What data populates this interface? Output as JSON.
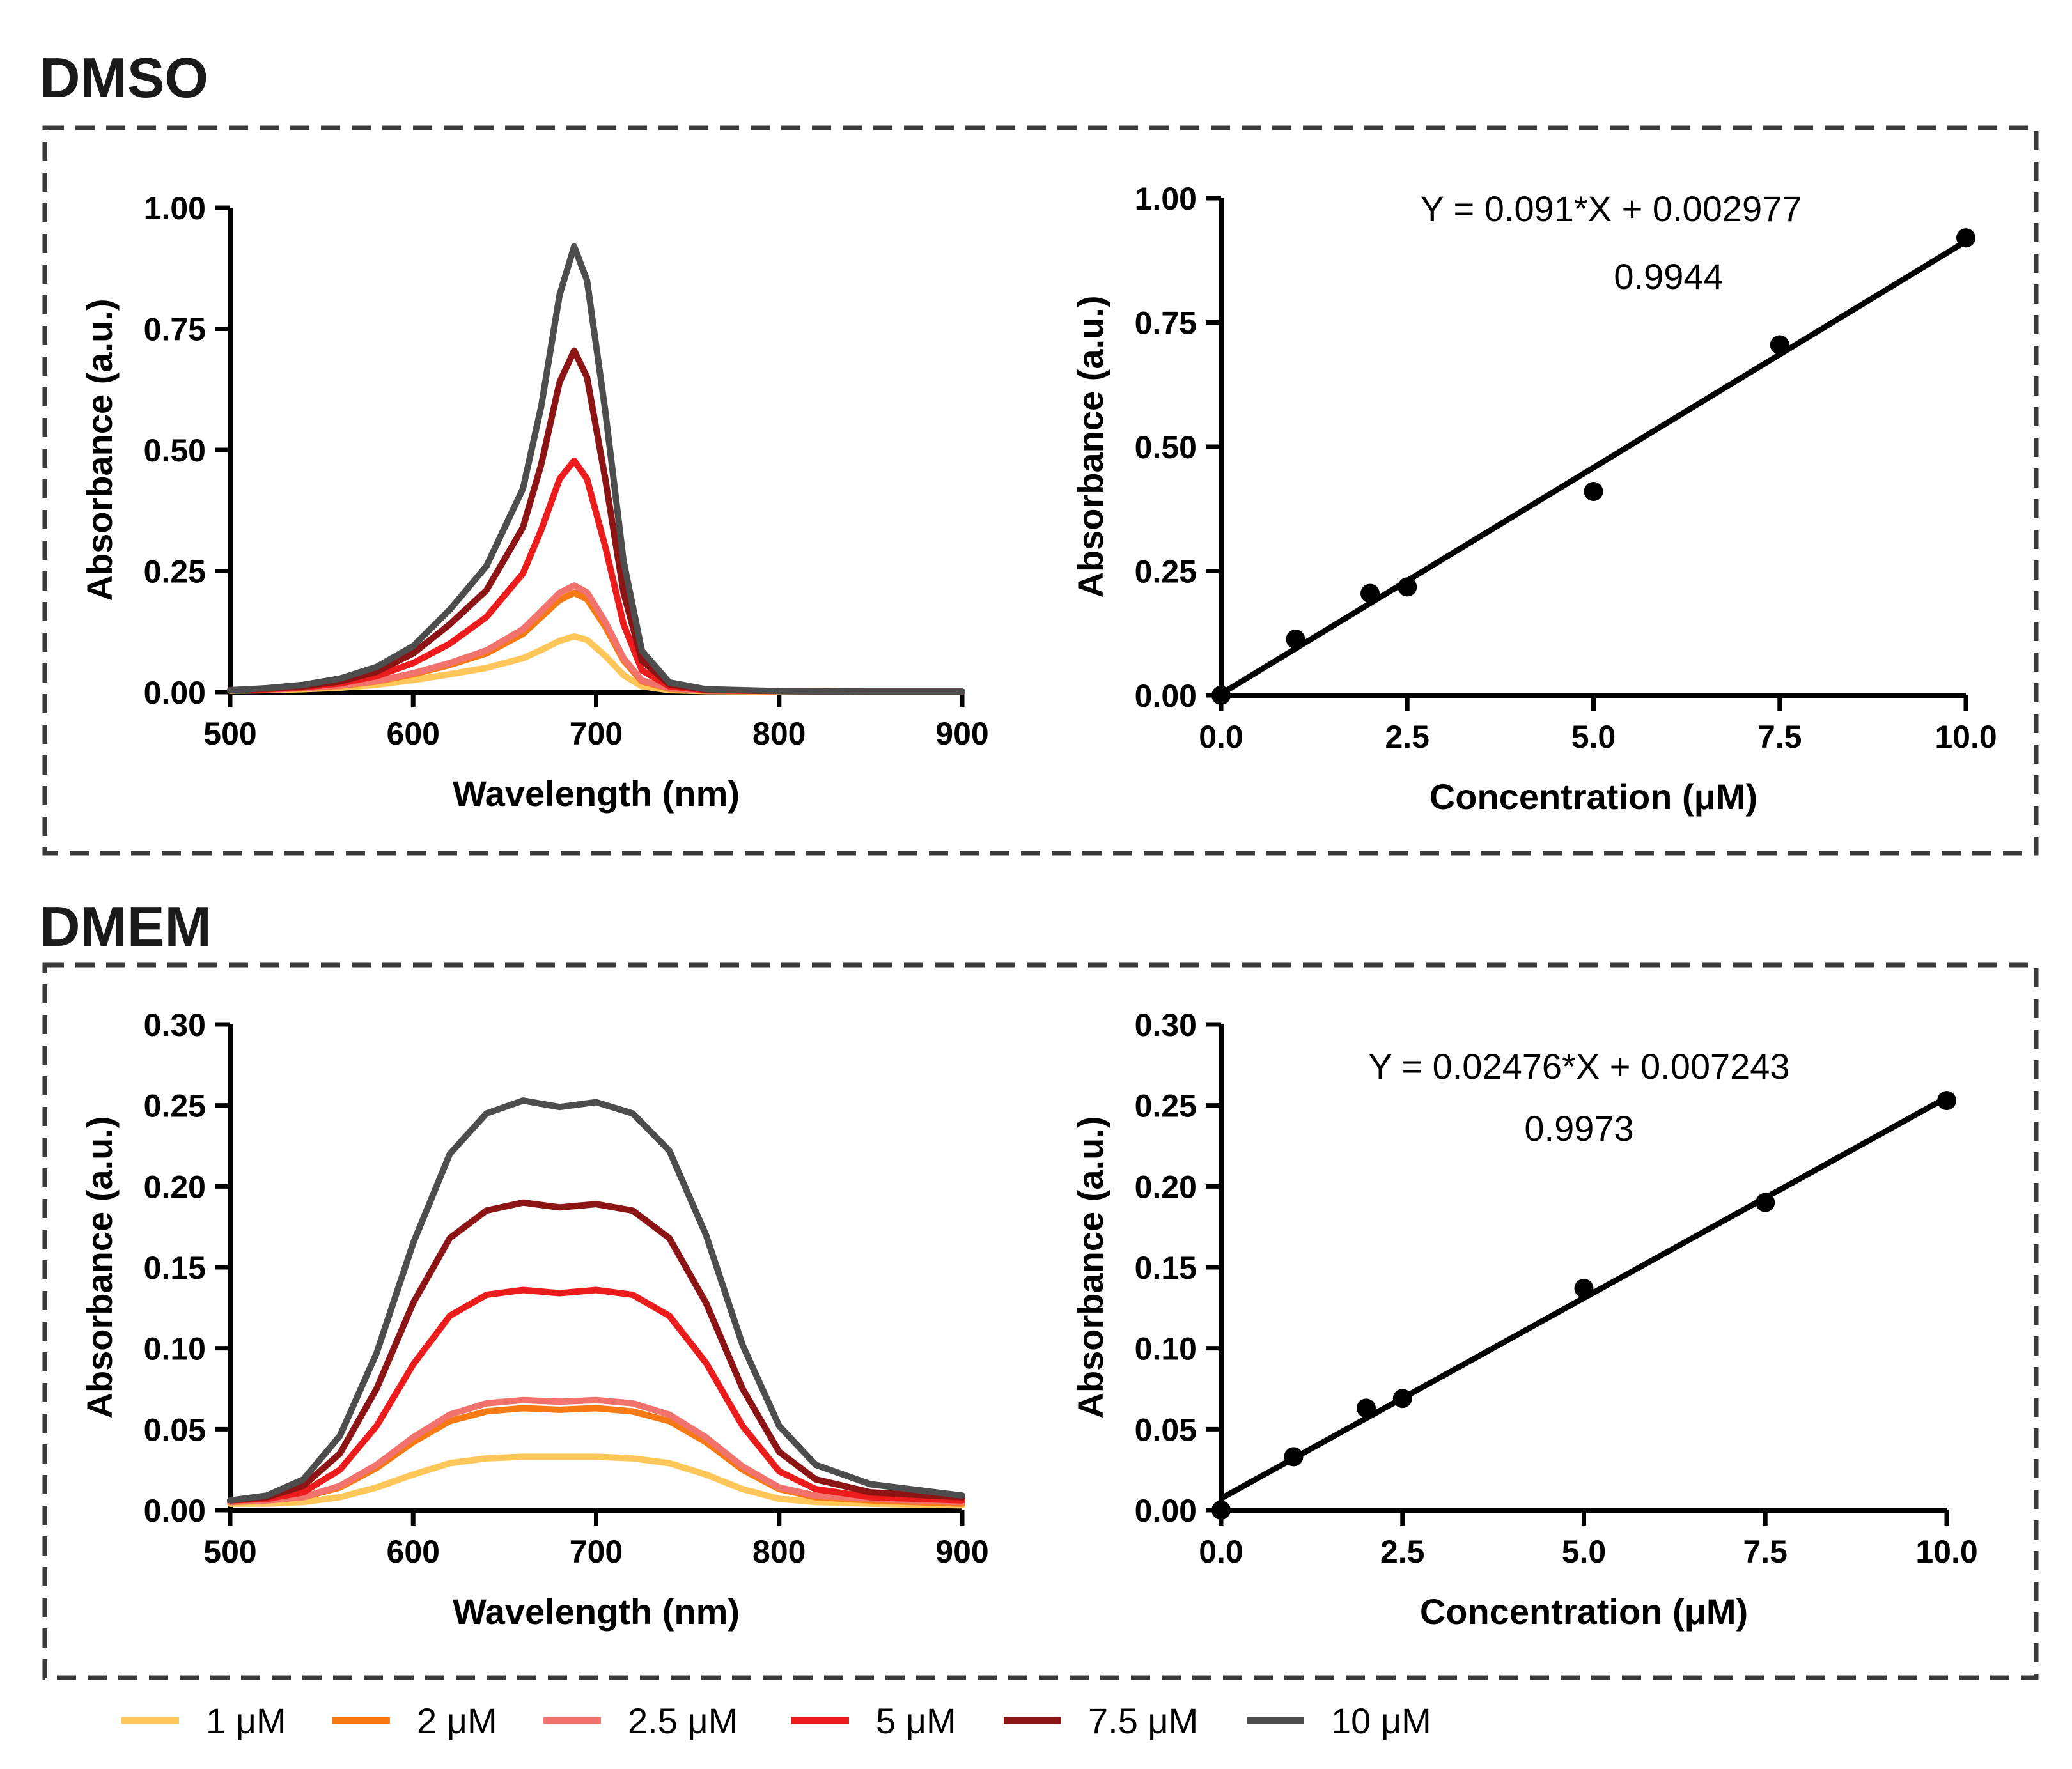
{
  "figure": {
    "legend": [
      {
        "label": "1 μM",
        "color": "#FFC65A"
      },
      {
        "label": "2 μM",
        "color": "#F57A13"
      },
      {
        "label": "2.5 μM",
        "color": "#F2726E"
      },
      {
        "label": "5 μM",
        "color": "#EC1C1C"
      },
      {
        "label": "7.5 μM",
        "color": "#8C1414"
      },
      {
        "label": "10 μM",
        "color": "#4D4D4D"
      }
    ]
  },
  "sections": [
    {
      "title": "DMSO"
    },
    {
      "title": "DMEM"
    }
  ],
  "chart_data": [
    {
      "id": "dmso-spectra",
      "type": "line",
      "section": "DMSO",
      "xlabel": "Wavelength (nm)",
      "ylabel": "Absorbance (a.u.)",
      "xlim": [
        500,
        900
      ],
      "ylim": [
        0,
        1.0
      ],
      "xticks": [
        500,
        600,
        700,
        800,
        900
      ],
      "xtick_labels": [
        "500",
        "600",
        "700",
        "800",
        "900"
      ],
      "yticks": [
        0,
        0.25,
        0.5,
        0.75,
        1.0
      ],
      "ytick_labels": [
        "0.00",
        "0.25",
        "0.50",
        "0.75",
        "1.00"
      ],
      "x": [
        500,
        520,
        540,
        560,
        580,
        600,
        620,
        640,
        660,
        670,
        680,
        688,
        695,
        705,
        715,
        725,
        740,
        760,
        800,
        850,
        900
      ],
      "series": [
        {
          "name": "1 μM",
          "color": "#FFC65A",
          "values": [
            0.003,
            0.004,
            0.006,
            0.009,
            0.015,
            0.025,
            0.037,
            0.05,
            0.07,
            0.087,
            0.106,
            0.115,
            0.108,
            0.075,
            0.035,
            0.012,
            0.004,
            0.002,
            0.001,
            0.001,
            0.001
          ]
        },
        {
          "name": "2 μM",
          "color": "#F57A13",
          "values": [
            0.004,
            0.005,
            0.008,
            0.013,
            0.022,
            0.037,
            0.056,
            0.08,
            0.12,
            0.155,
            0.19,
            0.205,
            0.192,
            0.135,
            0.065,
            0.022,
            0.007,
            0.003,
            0.002,
            0.001,
            0.001
          ]
        },
        {
          "name": "2.5 μM",
          "color": "#F2726E",
          "values": [
            0.004,
            0.005,
            0.008,
            0.014,
            0.023,
            0.039,
            0.06,
            0.086,
            0.13,
            0.167,
            0.205,
            0.22,
            0.206,
            0.145,
            0.07,
            0.024,
            0.008,
            0.003,
            0.002,
            0.001,
            0.001
          ]
        },
        {
          "name": "5 μM",
          "color": "#EC1C1C",
          "values": [
            0.004,
            0.006,
            0.01,
            0.018,
            0.033,
            0.06,
            0.1,
            0.155,
            0.245,
            0.335,
            0.44,
            0.478,
            0.44,
            0.3,
            0.14,
            0.045,
            0.012,
            0.004,
            0.002,
            0.001,
            0.001
          ]
        },
        {
          "name": "7.5 μM",
          "color": "#8C1414",
          "values": [
            0.004,
            0.007,
            0.012,
            0.022,
            0.042,
            0.08,
            0.14,
            0.21,
            0.34,
            0.47,
            0.64,
            0.705,
            0.65,
            0.44,
            0.205,
            0.065,
            0.016,
            0.005,
            0.002,
            0.001,
            0.001
          ]
        },
        {
          "name": "10 μM",
          "color": "#4D4D4D",
          "values": [
            0.004,
            0.008,
            0.015,
            0.028,
            0.052,
            0.095,
            0.17,
            0.26,
            0.42,
            0.59,
            0.82,
            0.92,
            0.85,
            0.58,
            0.27,
            0.085,
            0.02,
            0.006,
            0.002,
            0.001,
            0.001
          ]
        }
      ]
    },
    {
      "id": "dmso-calibration",
      "type": "scatter",
      "section": "DMSO",
      "xlabel": "Concentration (μM)",
      "ylabel": "Absorbance (a.u.)",
      "xlim": [
        0,
        10
      ],
      "ylim": [
        0,
        1.0
      ],
      "xticks": [
        0,
        2.5,
        5,
        7.5,
        10
      ],
      "xtick_labels": [
        "0.0",
        "2.5",
        "5.0",
        "7.5",
        "10.0"
      ],
      "yticks": [
        0,
        0.25,
        0.5,
        0.75,
        1.0
      ],
      "ytick_labels": [
        "0.00",
        "0.25",
        "0.50",
        "0.75",
        "1.00"
      ],
      "x": [
        0,
        1,
        2,
        2.5,
        5,
        7.5,
        10
      ],
      "y": [
        0,
        0.113,
        0.205,
        0.218,
        0.41,
        0.705,
        0.92
      ],
      "fit": {
        "slope": 0.091,
        "intercept": 0.002977,
        "x_range": [
          0,
          10
        ]
      },
      "equation": "Y = 0.091*X + 0.002977",
      "r2": "0.9944"
    },
    {
      "id": "dmem-spectra",
      "type": "line",
      "section": "DMEM",
      "xlabel": "Wavelength (nm)",
      "ylabel": "Absorbance (a.u.)",
      "xlim": [
        500,
        900
      ],
      "ylim": [
        0,
        0.3
      ],
      "xticks": [
        500,
        600,
        700,
        800,
        900
      ],
      "xtick_labels": [
        "500",
        "600",
        "700",
        "800",
        "900"
      ],
      "yticks": [
        0,
        0.05,
        0.1,
        0.15,
        0.2,
        0.25,
        0.3
      ],
      "ytick_labels": [
        "0.00",
        "0.05",
        "0.10",
        "0.15",
        "0.20",
        "0.25",
        "0.30"
      ],
      "x": [
        500,
        520,
        540,
        560,
        580,
        600,
        620,
        640,
        660,
        680,
        700,
        720,
        740,
        760,
        780,
        800,
        820,
        850,
        900
      ],
      "series": [
        {
          "name": "1 μM",
          "color": "#FFC65A",
          "values": [
            0.004,
            0.004,
            0.005,
            0.008,
            0.014,
            0.022,
            0.029,
            0.032,
            0.033,
            0.033,
            0.033,
            0.032,
            0.029,
            0.022,
            0.013,
            0.007,
            0.005,
            0.004,
            0.003
          ]
        },
        {
          "name": "2 μM",
          "color": "#F57A13",
          "values": [
            0.005,
            0.006,
            0.008,
            0.014,
            0.026,
            0.042,
            0.055,
            0.061,
            0.063,
            0.062,
            0.063,
            0.061,
            0.055,
            0.042,
            0.025,
            0.013,
            0.008,
            0.006,
            0.004
          ]
        },
        {
          "name": "2.5 μM",
          "color": "#F2726E",
          "values": [
            0.005,
            0.006,
            0.008,
            0.015,
            0.028,
            0.045,
            0.059,
            0.066,
            0.068,
            0.067,
            0.068,
            0.066,
            0.059,
            0.045,
            0.027,
            0.014,
            0.009,
            0.007,
            0.005
          ]
        },
        {
          "name": "5 μM",
          "color": "#EC1C1C",
          "values": [
            0.006,
            0.007,
            0.011,
            0.025,
            0.052,
            0.09,
            0.12,
            0.133,
            0.136,
            0.134,
            0.136,
            0.133,
            0.12,
            0.091,
            0.052,
            0.024,
            0.013,
            0.008,
            0.006
          ]
        },
        {
          "name": "7.5 μM",
          "color": "#8C1414",
          "values": [
            0.006,
            0.008,
            0.015,
            0.035,
            0.075,
            0.128,
            0.168,
            0.185,
            0.19,
            0.187,
            0.189,
            0.185,
            0.168,
            0.128,
            0.075,
            0.036,
            0.019,
            0.011,
            0.008
          ]
        },
        {
          "name": "10 μM",
          "color": "#4D4D4D",
          "values": [
            0.006,
            0.009,
            0.019,
            0.046,
            0.097,
            0.165,
            0.22,
            0.245,
            0.253,
            0.249,
            0.252,
            0.245,
            0.222,
            0.17,
            0.102,
            0.052,
            0.028,
            0.016,
            0.009
          ]
        }
      ]
    },
    {
      "id": "dmem-calibration",
      "type": "scatter",
      "section": "DMEM",
      "xlabel": "Concentration (μM)",
      "ylabel": "Absorbance (a.u.)",
      "xlim": [
        0,
        10
      ],
      "ylim": [
        0,
        0.3
      ],
      "xticks": [
        0,
        2.5,
        5,
        7.5,
        10
      ],
      "xtick_labels": [
        "0.0",
        "2.5",
        "5.0",
        "7.5",
        "10.0"
      ],
      "yticks": [
        0,
        0.05,
        0.1,
        0.15,
        0.2,
        0.25,
        0.3
      ],
      "ytick_labels": [
        "0.00",
        "0.05",
        "0.10",
        "0.15",
        "0.20",
        "0.25",
        "0.30"
      ],
      "x": [
        0,
        1,
        2,
        2.5,
        5,
        7.5,
        10
      ],
      "y": [
        0,
        0.033,
        0.063,
        0.069,
        0.137,
        0.19,
        0.253
      ],
      "fit": {
        "slope": 0.02476,
        "intercept": 0.007243,
        "x_range": [
          0,
          10
        ]
      },
      "equation": "Y = 0.02476*X + 0.007243",
      "r2": "0.9973"
    }
  ]
}
